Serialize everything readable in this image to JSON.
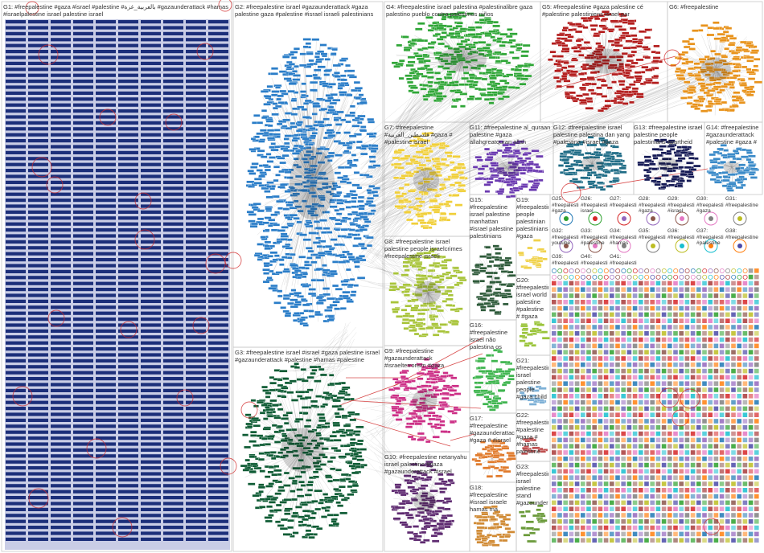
{
  "colors": {
    "G1": "#1c2f7a",
    "G2": "#2a7dc8",
    "G3": "#0f5c35",
    "G4": "#2fa637",
    "G5": "#b31d1d",
    "G6": "#e8931c",
    "G7": "#f0cf3a",
    "G8": "#a8c43a",
    "G9": "#cc2f86",
    "G10": "#5e2a70",
    "G11": "#6b3ab0",
    "G12": "#1f6c86",
    "G13": "#151a55",
    "G14": "#3a8ac8",
    "G15": "#2e5a3a",
    "G16": "#3fb54f",
    "G17": "#e07a2b",
    "G18": "#d08a34",
    "G19": "#f0d24a",
    "G20": "#9ac43a",
    "edge": "#9a9a9a",
    "tie": "#d12a2a",
    "frame": "#c8c8c8"
  },
  "groups": {
    "G1": "G1: #freepalestine #gaza #israel #palestine #بالعربية_غزة #gazaunderattack #hamas #israelpalestine israel palestine israel",
    "G2": "G2: #freepalestine israel #gazaunderattack #gaza palestine gaza #palestine #israel israeli palestinians",
    "G3": "G3: #freepalestine israel #israel #gaza palestine israel #gazaunderattack #palestine #hamas #palestine hamas غزة_العزة",
    "G4": "G4: #freepalestine israel palestina #palestinalibre gaza palestino pueblo contra palestinos niños",
    "G5": "G5: #freepalestine #gaza palestine cé #palestine palestiniens israel par #gazaunderattack soft",
    "G6": "G6: #freepalestine",
    "G7": "G7: #freepalestine #فلسطين_العربية #gaza # #palestine israel #westandwithgaza # #hamas",
    "G8": "G8: #freepalestine israel palestine people israelcrimes #freepalestine israeli palestinians hamas palestinian israeli gaza",
    "G9": "G9: #freepalestine #gazaunderattack #israelterrorism #gaza #palestine #israel فلسطين_الحرة # #palestine",
    "G10": "G10: #freepalestine netanyahu israel palestine #gaza #gazaunderattack #israel #hamas palestine people",
    "G11": "G11: #freepalestine al_quraan palestine #gaza allahgreatquran allah #gazaunderattack",
    "G12": "G12: #freepalestine israel palestine palestina dan yang #palestine #israel #gaza #hamas",
    "G13": "G13: #freepalestine israel palestine people palestinians apartheid justin hides support hamas palestinian",
    "G14": "G14: #freepalestine #gazaunderattack #palestine #gaza # palestine israel",
    "G15": "G15: #freepalestine israel palestine manhattan #israel palestine palestinians hamas",
    "G16": "G16: #freepalestine israel não palestina os palestina #palestina povo",
    "G17": "G17: #freepalestine #gazaunderattack #gaza # #israel # #aksaflam #gaza #palestine",
    "G18": "G18: #freepalestine #israel israele hamas ma #gaza #palestinesi #israel palestinesi sono",
    "G19": "G19: #freepalestine people palestinian palestinians #gaza #palestine",
    "G20": "G20: #freepalestine israel world palestine #palestine # #gaza",
    "G21": "G21: #freepalestine israel palestine people #gaza child #palestinelives",
    "G22": "G22: #freepalestine #palestine #gaza # #hamas palestine",
    "G23": "G23: #freepalestine israel palestine stand #gazaunderattack"
  },
  "small_groups": [
    "G25: #freepalestine #gaza #palestine",
    "G26: #freepalestine israel #gaza",
    "G27: #freepalestine",
    "G28: #freepalestine #gaza #israel",
    "G29: #freepalestine #israel",
    "G30: #freepalestine #gaza",
    "G31: #freepalestine",
    "G32: #freepalestine youtube",
    "G33: #freepalestine #palestine",
    "G34: #freepalestine #hamas",
    "G35: #freepalestine",
    "G36: #freepalestine",
    "G37: #freepalestine #palestine",
    "G38: #freepalestine",
    "G39: #freepalestine",
    "G40: #freepalestine people",
    "G41: #freepalestine peace"
  ]
}
